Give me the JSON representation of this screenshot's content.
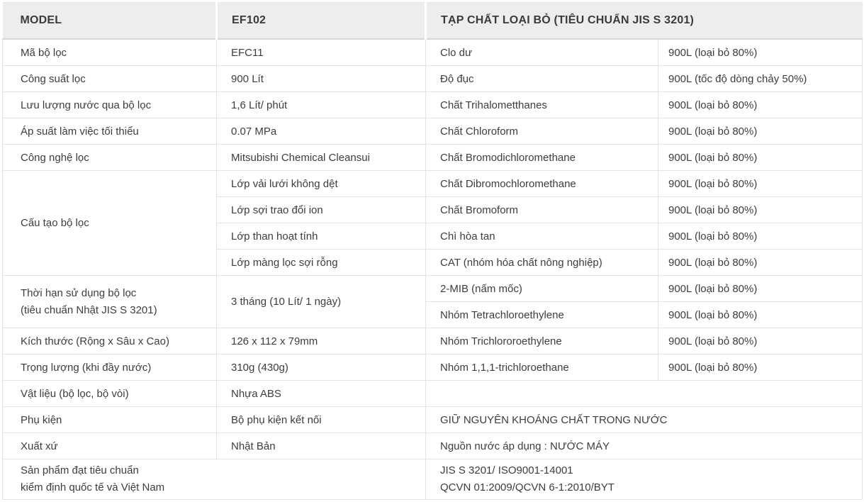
{
  "colors": {
    "header_bg": "#ededed",
    "header_border": "#d7d7d7",
    "row_border": "#e3e3e3",
    "text": "#3d3d3d",
    "background": "#ffffff"
  },
  "table": {
    "header": {
      "model": "MODEL",
      "model_value": "EF102",
      "impurities": "TẠP CHẤT LOẠI BỎ (TIÊU CHUẨN JIS S 3201)"
    },
    "specs": [
      {
        "label": "Mã bộ lọc",
        "value": "EFC11"
      },
      {
        "label": "Công suất lọc",
        "value": "900 Lít"
      },
      {
        "label": "Lưu lượng nước qua bộ lọc",
        "value": "1,6 Lít/ phút"
      },
      {
        "label": "Áp suất làm việc tối thiểu",
        "value": "0.07 MPa"
      },
      {
        "label": "Công nghệ lọc",
        "value": "Mitsubishi Chemical Cleansui"
      }
    ],
    "structure": {
      "label": "Cấu tạo bộ lọc",
      "layers": [
        "Lớp vải lưới không dệt",
        "Lớp sợi trao đổi ion",
        "Lớp than hoạt tính",
        "Lớp màng lọc sợi rỗng"
      ]
    },
    "lifetime": {
      "label_line1": "Thời hạn sử dụng bộ lọc",
      "label_line2": "(tiêu chuẩn Nhật JIS S 3201)",
      "value": "3 tháng (10 Lít/ 1 ngày)"
    },
    "specs2": [
      {
        "label": "Kích thước (Rộng x Sâu x Cao)",
        "value": "126 x 112 x 79mm"
      },
      {
        "label": "Trọng lượng (khi đầy nước)",
        "value": "310g (430g)"
      },
      {
        "label": "Vật liệu (bộ lọc, bộ vòi)",
        "value": "Nhựa ABS"
      },
      {
        "label": "Phụ kiện",
        "value": "Bộ phụ kiện kết nối"
      },
      {
        "label": "Xuất xứ",
        "value": "Nhật Bản"
      }
    ],
    "certification": {
      "label_line1": "Sản phẩm đạt tiêu chuẩn",
      "label_line2": "kiểm định quốc tế và Việt Nam",
      "value_line1": "JIS S 3201/ ISO9001-14001",
      "value_line2": "QCVN 01:2009/QCVN 6-1:2010/BYT"
    },
    "contaminants": [
      {
        "name": "Clo dư",
        "value": "900L (loại bỏ 80%)"
      },
      {
        "name": "Độ đục",
        "value": "900L (tốc độ dòng chảy 50%)"
      },
      {
        "name": "Chất Trihalometthanes",
        "value": "900L (loại bỏ 80%)"
      },
      {
        "name": "Chất Chloroform",
        "value": "900L (loại bỏ 80%)"
      },
      {
        "name": "Chất Bromodichloromethane",
        "value": "900L (loại bỏ 80%)"
      },
      {
        "name": "Chất Dibromochloromethane",
        "value": "900L (loại bỏ 80%)"
      },
      {
        "name": "Chất Bromoform",
        "value": "900L (loại bỏ 80%)"
      },
      {
        "name": "Chì hòa tan",
        "value": "900L (loại bỏ 80%)"
      },
      {
        "name": "CAT (nhóm hóa chất nông nghiệp)",
        "value": "900L (loại bỏ 80%)"
      },
      {
        "name": "2-MIB (nấm mốc)",
        "value": "900L (loại bỏ 80%)"
      },
      {
        "name": "Nhóm Tetrachloroethylene",
        "value": "900L (loại bỏ 80%)"
      },
      {
        "name": "Nhóm Trichlororoethylene",
        "value": "900L (loại bỏ 80%)"
      },
      {
        "name": "Nhóm 1,1,1-trichloroethane",
        "value": "900L (loại bỏ 80%)"
      }
    ],
    "notes": {
      "minerals": "GIỮ NGUYÊN KHOÁNG CHẤT TRONG NƯỚC",
      "water_source": "Nguồn nước áp dụng : NƯỚC MÁY"
    }
  }
}
